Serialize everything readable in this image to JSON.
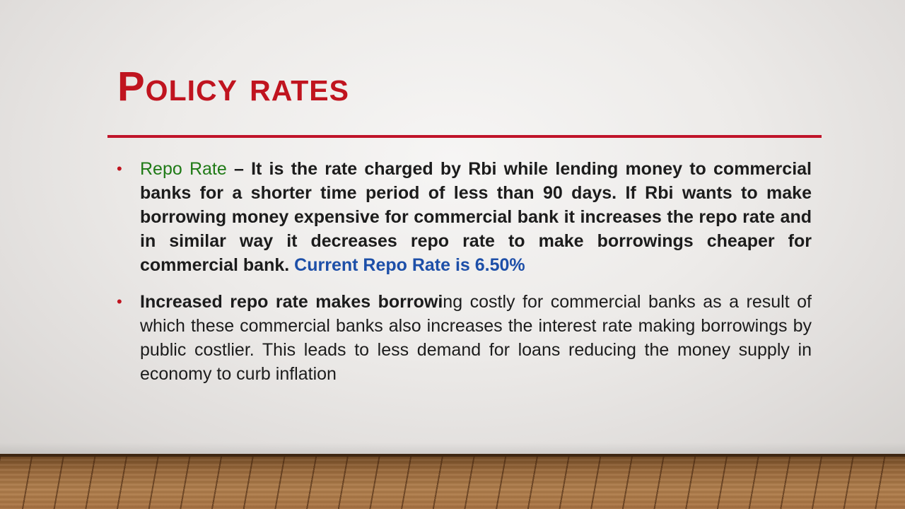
{
  "slide": {
    "title": "Policy rates",
    "bullets": [
      {
        "marker": "•",
        "term": "Repo Rate",
        "definition": " – It is the rate charged by Rbi while lending money to commercial banks for a shorter time period of less than 90 days. If Rbi wants to make borrowing money expensive for commercial bank it increases the repo rate and in similar way it decreases repo rate to make borrowings cheaper for commercial bank. ",
        "current_rate": "Current Repo Rate is 6.50%"
      },
      {
        "marker": "•",
        "lead_bold": "Increased repo rate makes borrowi",
        "rest": "ng costly for commercial banks as a result of which these commercial banks also increases the interest rate making borrowings by public costlier. This leads to less demand for loans reducing the money supply in economy to curb inflation"
      }
    ]
  },
  "colors": {
    "title": "#c0141f",
    "rule": "#c0142a",
    "term": "#1f7a16",
    "highlight": "#1d4fa8",
    "body_text": "#1c1c1c"
  }
}
